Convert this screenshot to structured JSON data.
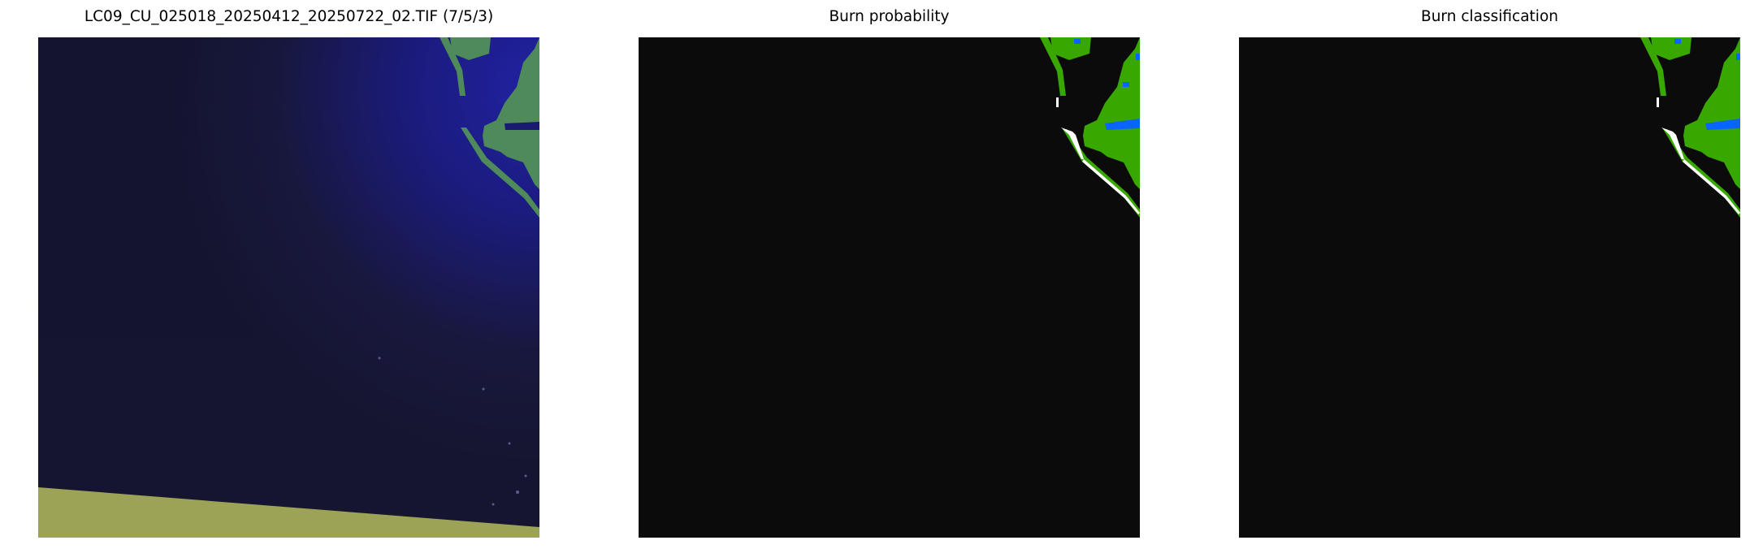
{
  "panels": [
    {
      "title": "LC09_CU_025018_20250412_20250722_02.TIF (7/5/3)",
      "kind": "false-color composite"
    },
    {
      "title": "Burn probability",
      "kind": "probability map"
    },
    {
      "title": "Burn classification",
      "kind": "classification map"
    }
  ],
  "colors": {
    "background": "#0b0b0b",
    "land": "#38a800",
    "water": "#0a64ff",
    "burn": "#ffffff",
    "ocean_dark": "#17172e",
    "ocean_bright": "#1c1ca0",
    "nodata": "#9ca256"
  }
}
